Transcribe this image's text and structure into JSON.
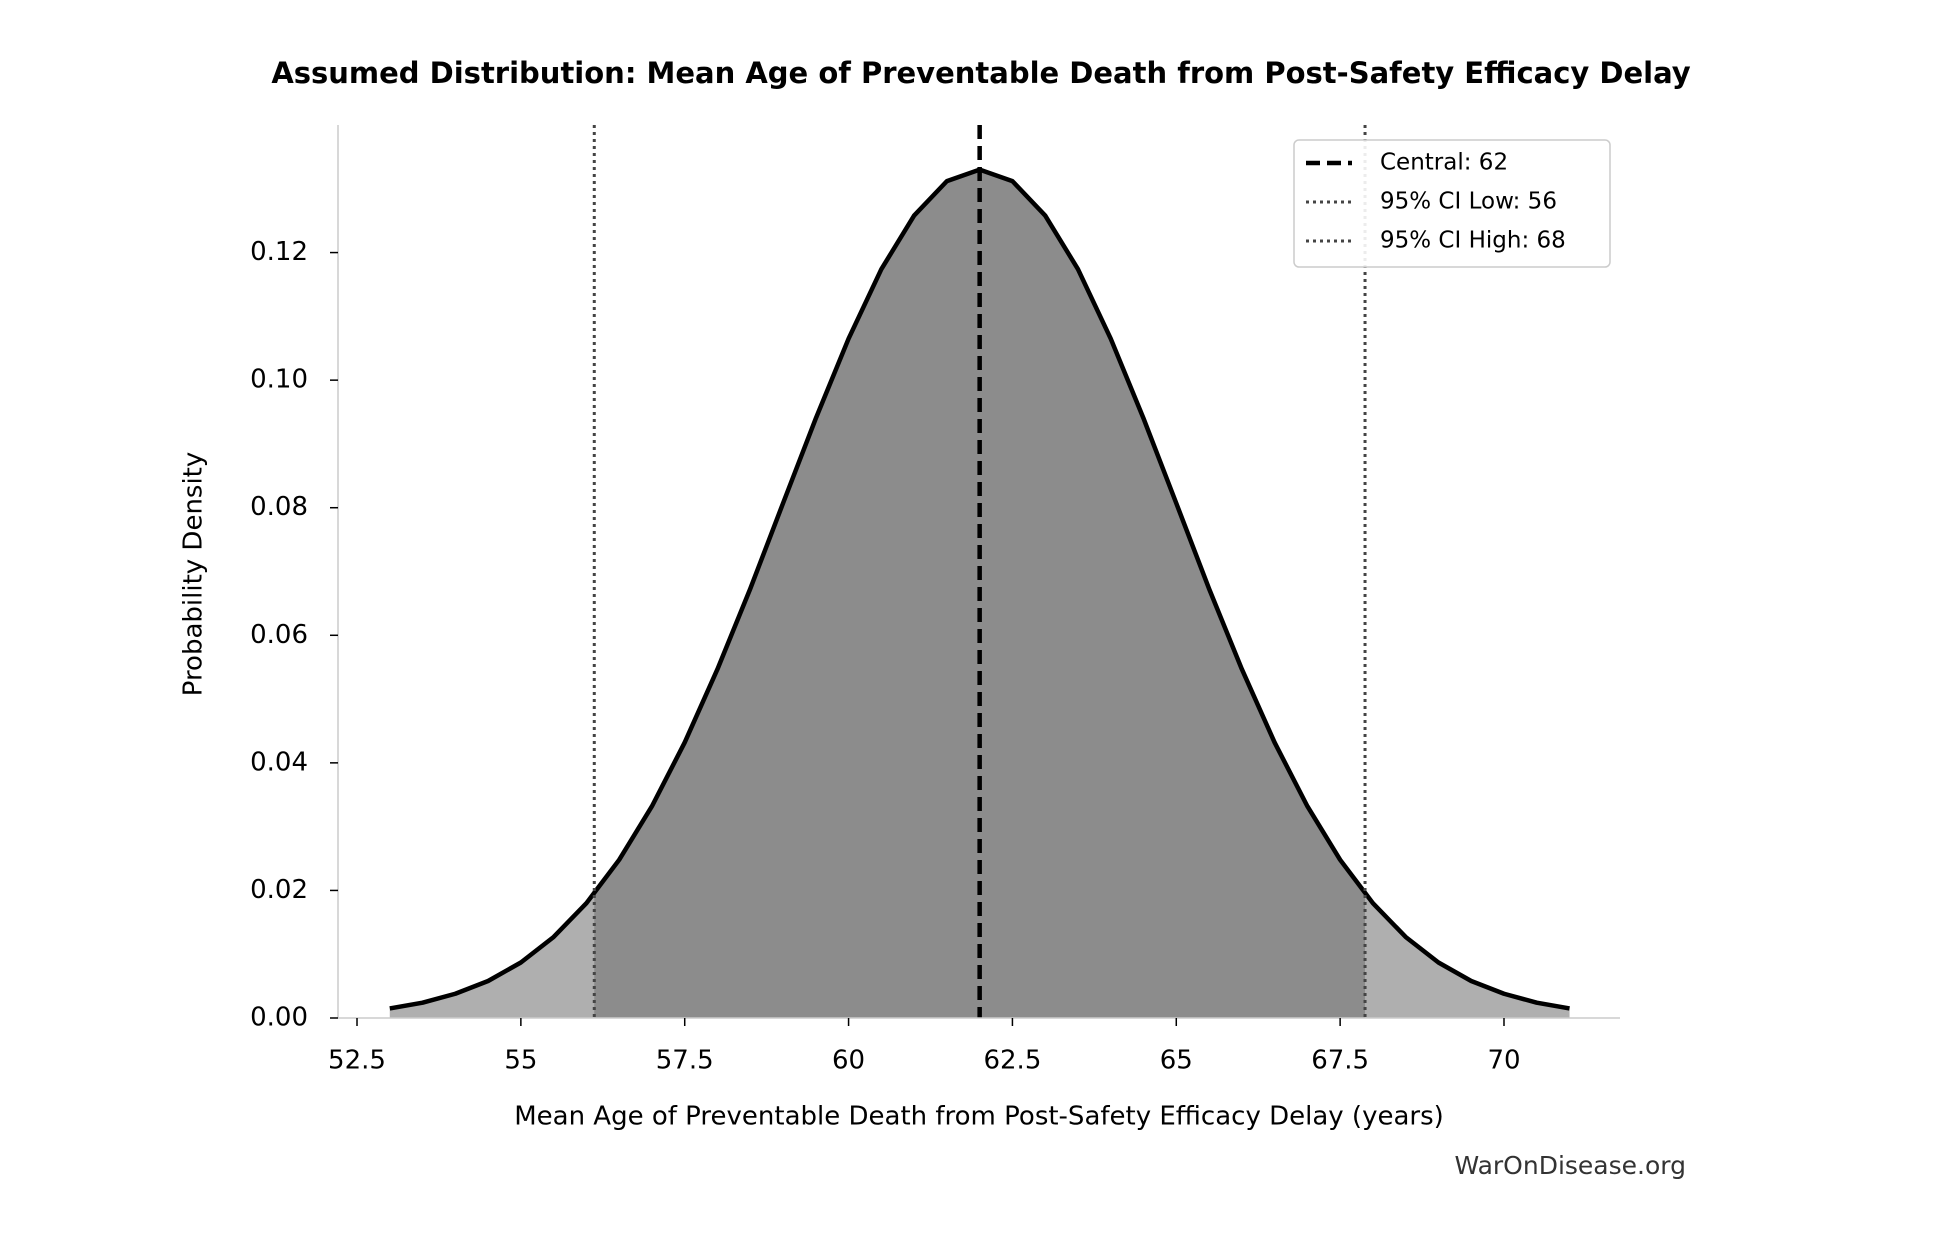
{
  "chart_data": {
    "type": "area",
    "title": "Assumed Distribution: Mean Age of Preventable Death from Post-Safety Efficacy Delay",
    "xlabel": "Mean Age of Preventable Death from Post-Safety Efficacy Delay (years)",
    "ylabel": "Probability Density",
    "watermark": "WarOnDisease.org",
    "x": [
      53,
      53.5,
      54,
      54.5,
      55,
      55.5,
      56,
      56.5,
      57,
      57.5,
      58,
      58.5,
      59,
      59.5,
      60,
      60.5,
      61,
      61.5,
      62,
      62.5,
      63,
      63.5,
      64,
      64.5,
      65,
      65.5,
      66,
      66.5,
      67,
      67.5,
      68,
      68.5,
      69,
      69.5,
      70,
      70.5,
      71
    ],
    "series": [
      {
        "color": "#000000",
        "values": [
          0.0015,
          0.0024,
          0.0038,
          0.0058,
          0.0087,
          0.0127,
          0.018,
          0.0248,
          0.0332,
          0.0432,
          0.0547,
          0.0673,
          0.0807,
          0.094,
          0.1065,
          0.1174,
          0.1258,
          0.1312,
          0.133,
          0.1312,
          0.1258,
          0.1174,
          0.1065,
          0.094,
          0.0807,
          0.0673,
          0.0547,
          0.0432,
          0.0332,
          0.0248,
          0.018,
          0.0127,
          0.0087,
          0.0058,
          0.0038,
          0.0024,
          0.0015
        ]
      }
    ],
    "fill_colors": {
      "outside": "#afafaf",
      "inside": "#8c8c8c"
    },
    "vlines": [
      {
        "label": "Central: 62",
        "value": 62,
        "style": "dashed",
        "color": "#000000"
      },
      {
        "label": "95% CI Low: 56",
        "value": 56.12,
        "style": "dotted",
        "color": "#444444"
      },
      {
        "label": "95% CI High: 68",
        "value": 67.88,
        "style": "dotted",
        "color": "#444444"
      }
    ],
    "xlim": [
      52.21,
      71.77
    ],
    "ylim": [
      0,
      0.14
    ],
    "xticks": [
      52.5,
      55,
      57.5,
      60,
      62.5,
      65,
      67.5,
      70
    ],
    "yticks": [
      {
        "value": 0,
        "label": "0.00"
      },
      {
        "value": 0.02,
        "label": "0.02"
      },
      {
        "value": 0.04,
        "label": "0.04"
      },
      {
        "value": 0.06,
        "label": "0.06"
      },
      {
        "value": 0.08,
        "label": "0.08"
      },
      {
        "value": 0.1,
        "label": "0.10"
      },
      {
        "value": 0.12,
        "label": "0.12"
      }
    ],
    "legend": "upper right",
    "grid": false
  }
}
